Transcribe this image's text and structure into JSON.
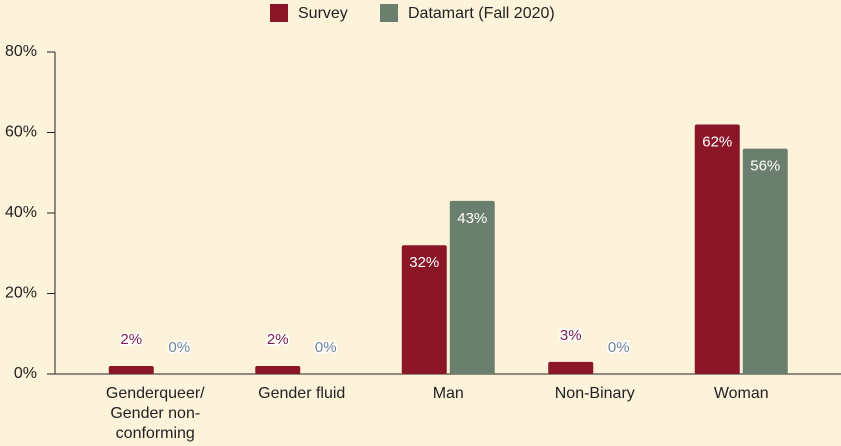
{
  "chart_data": {
    "type": "bar",
    "categories": [
      "Genderqueer/ Gender non-conforming",
      "Gender fluid",
      "Man",
      "Non-Binary",
      "Woman"
    ],
    "series": [
      {
        "name": "Survey",
        "color": "#8a1628",
        "values": [
          2,
          2,
          32,
          3,
          62
        ],
        "value_labels": [
          "2%",
          "2%",
          "32%",
          "3%",
          "62%"
        ]
      },
      {
        "name": "Datamart (Fall 2020)",
        "color": "#6b7f6f",
        "values": [
          0,
          0,
          43,
          0,
          56
        ],
        "value_labels": [
          "0%",
          "0%",
          "43%",
          "0%",
          "56%"
        ]
      }
    ],
    "ylim": [
      0,
      80
    ],
    "yticks": [
      {
        "value": 0,
        "label": "0%"
      },
      {
        "value": 20,
        "label": "20%"
      },
      {
        "value": 40,
        "label": "40%"
      },
      {
        "value": 60,
        "label": "60%"
      },
      {
        "value": 80,
        "label": "80%"
      }
    ],
    "legend": "top"
  }
}
